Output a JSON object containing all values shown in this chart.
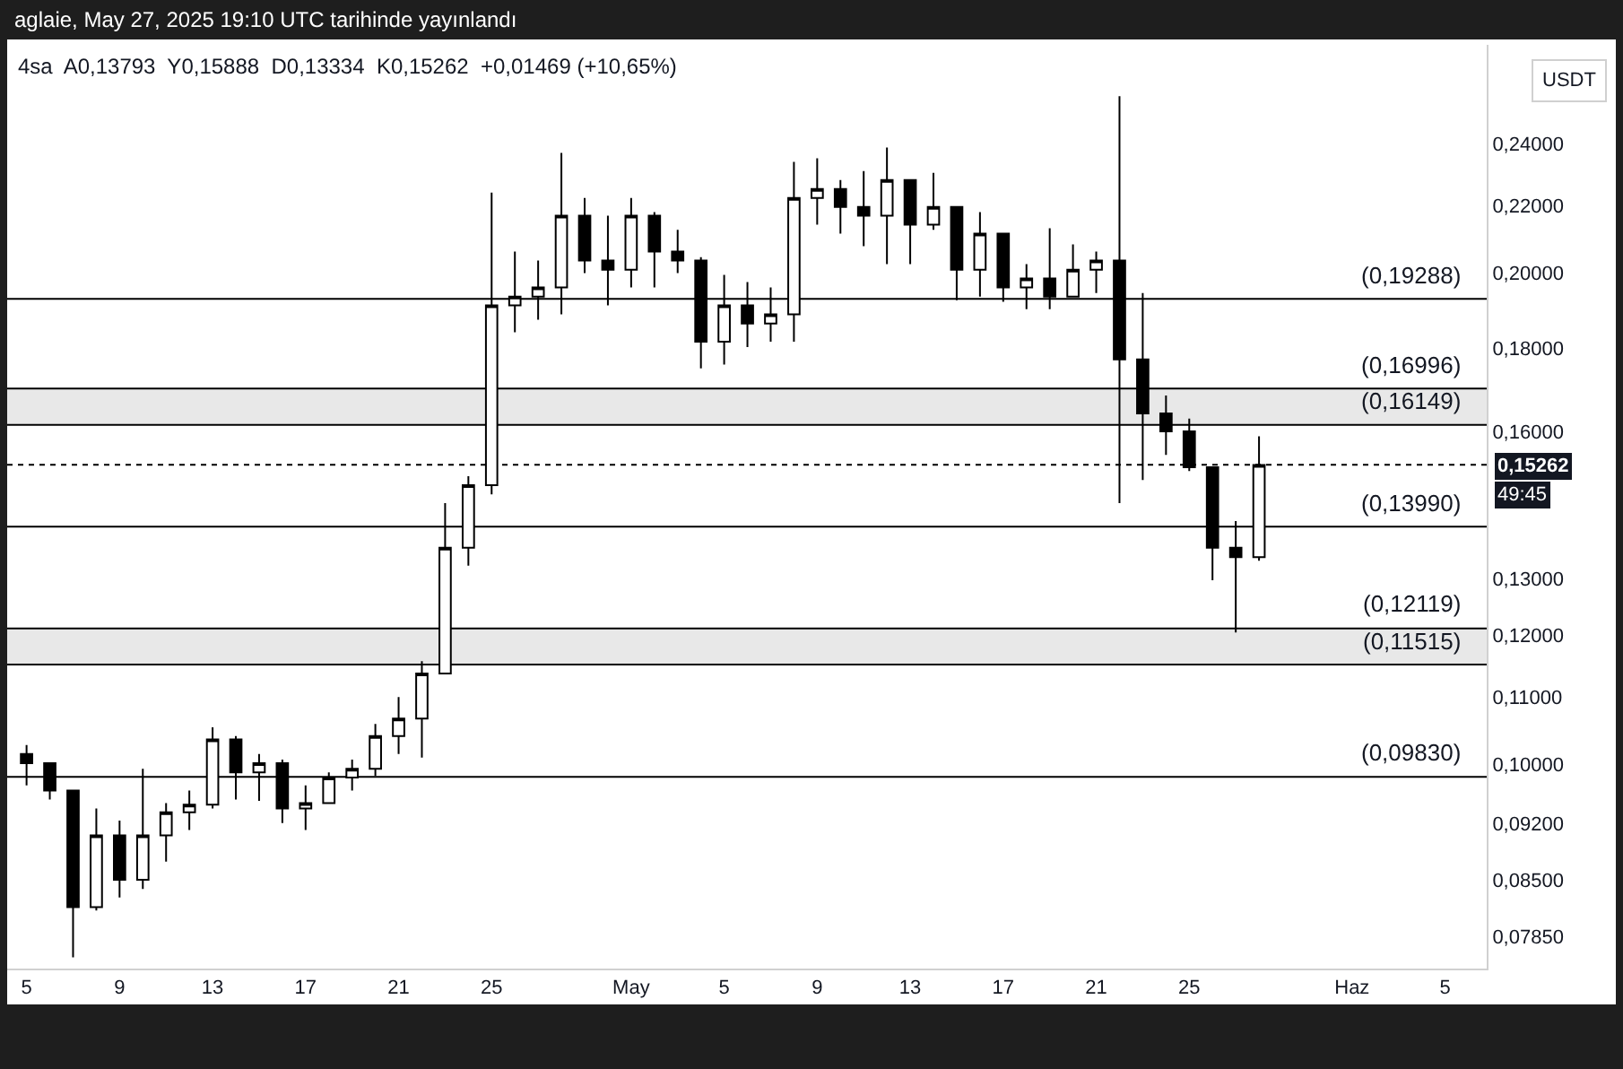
{
  "chart_data": {
    "type": "candlestick",
    "title": "aglaie, May 27, 2025 19:10 UTC tarihinde yayınlandı",
    "subtitle": "4sa  A0,13793  Y0,15888  D0,13334  K0,15262  +0,01469 (+10,65%)",
    "annotations": [
      "USDT",
      "49:45"
    ],
    "color": "#000000",
    "x": [
      "2025-04-05",
      "2025-04-06",
      "2025-04-07",
      "2025-04-08",
      "2025-04-09",
      "2025-04-10",
      "2025-04-11",
      "2025-04-12",
      "2025-04-13",
      "2025-04-14",
      "2025-04-15",
      "2025-04-16",
      "2025-04-17",
      "2025-04-18",
      "2025-04-19",
      "2025-04-20",
      "2025-04-21",
      "2025-04-22",
      "2025-04-23",
      "2025-04-24",
      "2025-04-25",
      "2025-04-26",
      "2025-04-27",
      "2025-04-28",
      "2025-04-29",
      "2025-04-30",
      "2025-05-01",
      "2025-05-02",
      "2025-05-03",
      "2025-05-04",
      "2025-05-05",
      "2025-05-06",
      "2025-05-07",
      "2025-05-08",
      "2025-05-09",
      "2025-05-10",
      "2025-05-11",
      "2025-05-12",
      "2025-05-13",
      "2025-05-14",
      "2025-05-15",
      "2025-05-16",
      "2025-05-17",
      "2025-05-18",
      "2025-05-19",
      "2025-05-20",
      "2025-05-21",
      "2025-05-22",
      "2025-05-23",
      "2025-05-24",
      "2025-05-25",
      "2025-05-26",
      "2025-05-27",
      "2025-05-28"
    ],
    "ohlc": [
      [
        0.1015,
        0.1028,
        0.0971,
        0.1002
      ],
      [
        0.1002,
        0.1002,
        0.0952,
        0.0964
      ],
      [
        0.0964,
        0.0964,
        0.0762,
        0.0818
      ],
      [
        0.0818,
        0.094,
        0.0814,
        0.0905
      ],
      [
        0.0905,
        0.0924,
        0.0829,
        0.085
      ],
      [
        0.085,
        0.0994,
        0.0839,
        0.0905
      ],
      [
        0.0905,
        0.0947,
        0.0872,
        0.0935
      ],
      [
        0.0935,
        0.0964,
        0.0912,
        0.0945
      ],
      [
        0.0945,
        0.1054,
        0.094,
        0.1036
      ],
      [
        0.1036,
        0.1041,
        0.0952,
        0.0989
      ],
      [
        0.0989,
        0.1015,
        0.095,
        0.1002
      ],
      [
        0.1002,
        0.1007,
        0.0921,
        0.094
      ],
      [
        0.094,
        0.0971,
        0.0912,
        0.0947
      ],
      [
        0.0947,
        0.0989,
        0.0947,
        0.0982
      ],
      [
        0.0982,
        0.1007,
        0.0964,
        0.0994
      ],
      [
        0.0994,
        0.1059,
        0.0984,
        0.1041
      ],
      [
        0.1041,
        0.11,
        0.1015,
        0.1067
      ],
      [
        0.1067,
        0.1157,
        0.101,
        0.1137
      ],
      [
        0.1137,
        0.1446,
        0.1137,
        0.1358
      ],
      [
        0.1358,
        0.1502,
        0.1324,
        0.1483
      ],
      [
        0.1483,
        0.2241,
        0.1464,
        0.1911
      ],
      [
        0.1911,
        0.2062,
        0.184,
        0.1935
      ],
      [
        0.1935,
        0.2036,
        0.1873,
        0.196
      ],
      [
        0.196,
        0.237,
        0.1887,
        0.2169
      ],
      [
        0.2169,
        0.2224,
        0.2,
        0.2036
      ],
      [
        0.2036,
        0.2169,
        0.1911,
        0.201
      ],
      [
        0.201,
        0.2224,
        0.196,
        0.2169
      ],
      [
        0.2169,
        0.218,
        0.196,
        0.2062
      ],
      [
        0.2062,
        0.2126,
        0.2,
        0.2036
      ],
      [
        0.2036,
        0.2046,
        0.1749,
        0.1816
      ],
      [
        0.1816,
        0.1995,
        0.1758,
        0.1911
      ],
      [
        0.1911,
        0.1975,
        0.1802,
        0.1863
      ],
      [
        0.1863,
        0.196,
        0.1816,
        0.1887
      ],
      [
        0.1887,
        0.234,
        0.1816,
        0.2224
      ],
      [
        0.2224,
        0.2352,
        0.2142,
        0.2252
      ],
      [
        0.2252,
        0.2281,
        0.2115,
        0.2196
      ],
      [
        0.2196,
        0.231,
        0.2078,
        0.2169
      ],
      [
        0.2169,
        0.2388,
        0.2026,
        0.2281
      ],
      [
        0.2281,
        0.2281,
        0.2026,
        0.2142
      ],
      [
        0.2142,
        0.2304,
        0.2126,
        0.2196
      ],
      [
        0.2196,
        0.2196,
        0.1925,
        0.201
      ],
      [
        0.201,
        0.218,
        0.1935,
        0.2115
      ],
      [
        0.2115,
        0.2115,
        0.1921,
        0.196
      ],
      [
        0.196,
        0.2026,
        0.1901,
        0.1985
      ],
      [
        0.1985,
        0.2131,
        0.1901,
        0.1935
      ],
      [
        0.1935,
        0.2083,
        0.1935,
        0.201
      ],
      [
        0.201,
        0.2062,
        0.1945,
        0.2036
      ],
      [
        0.2036,
        0.2567,
        0.1446,
        0.1771
      ],
      [
        0.1771,
        0.1945,
        0.1494,
        0.1641
      ],
      [
        0.1641,
        0.1683,
        0.1548,
        0.16
      ],
      [
        0.16,
        0.1629,
        0.1513,
        0.1521
      ],
      [
        0.1521,
        0.1521,
        0.1297,
        0.1358
      ],
      [
        0.1358,
        0.141,
        0.1205,
        0.134
      ],
      [
        0.134,
        0.1589,
        0.1333,
        0.1526
      ]
    ],
    "xlim": [
      "2025-04-04T04:00",
      "2025-06-06T19:00"
    ],
    "xticks": [
      {
        "value": "2025-04-05",
        "label": "5"
      },
      {
        "value": "2025-04-09",
        "label": "9"
      },
      {
        "value": "2025-04-13",
        "label": "13"
      },
      {
        "value": "2025-04-17",
        "label": "17"
      },
      {
        "value": "2025-04-21",
        "label": "21"
      },
      {
        "value": "2025-04-25",
        "label": "25"
      },
      {
        "value": "2025-05-01",
        "label": "May"
      },
      {
        "value": "2025-05-05",
        "label": "5"
      },
      {
        "value": "2025-05-09",
        "label": "9"
      },
      {
        "value": "2025-05-13",
        "label": "13"
      },
      {
        "value": "2025-05-17",
        "label": "17"
      },
      {
        "value": "2025-05-21",
        "label": "21"
      },
      {
        "value": "2025-05-25",
        "label": "25"
      },
      {
        "value": "2025-06-01",
        "label": "Haz"
      },
      {
        "value": "2025-06-05",
        "label": "5"
      }
    ],
    "log": true,
    "ylim": [
      0.075,
      0.276
    ],
    "yticks": [
      {
        "value": 0.0785,
        "label": "0,07850"
      },
      {
        "value": 0.085,
        "label": "0,08500"
      },
      {
        "value": 0.092,
        "label": "0,09200"
      },
      {
        "value": 0.1,
        "label": "0,10000"
      },
      {
        "value": 0.11,
        "label": "0,11000"
      },
      {
        "value": 0.12,
        "label": "0,12000"
      },
      {
        "value": 0.13,
        "label": "0,13000"
      },
      {
        "value": 0.16,
        "label": "0,16000"
      },
      {
        "value": 0.18,
        "label": "0,18000"
      },
      {
        "value": 0.2,
        "label": "0,20000"
      },
      {
        "value": 0.22,
        "label": "0,22000"
      },
      {
        "value": 0.24,
        "label": "0,24000"
      }
    ],
    "ref_lines": [
      {
        "axis": "y",
        "value": 0.19288,
        "label": "(0,19288)",
        "color": "#000000",
        "line_style": "solid"
      },
      {
        "axis": "y",
        "value": 0.16996,
        "label": "(0,16996)",
        "color": "#000000",
        "line_style": "solid"
      },
      {
        "axis": "y",
        "value": 0.16149,
        "label": "(0,16149)",
        "color": "#000000",
        "line_style": "solid"
      },
      {
        "axis": "y",
        "value": 0.1399,
        "label": "(0,13990)",
        "color": "#000000",
        "line_style": "solid"
      },
      {
        "axis": "y",
        "value": 0.12119,
        "label": "(0,12119)",
        "color": "#000000",
        "line_style": "solid"
      },
      {
        "axis": "y",
        "value": 0.11515,
        "label": "(0,11515)",
        "color": "#000000",
        "line_style": "solid"
      },
      {
        "axis": "y",
        "value": 0.0983,
        "label": "(0,09830)",
        "color": "#000000",
        "line_style": "solid"
      },
      {
        "axis": "y",
        "value": 0.15262,
        "label": "0,15262",
        "color": "#000000",
        "line_style": "dotted"
      }
    ],
    "bands": [
      {
        "axis": "y",
        "from": 0.16149,
        "to": 0.16996,
        "color": "#e8e8e8"
      },
      {
        "axis": "y",
        "from": 0.11515,
        "to": 0.12119,
        "color": "#e8e8e8"
      }
    ],
    "grid": false
  }
}
